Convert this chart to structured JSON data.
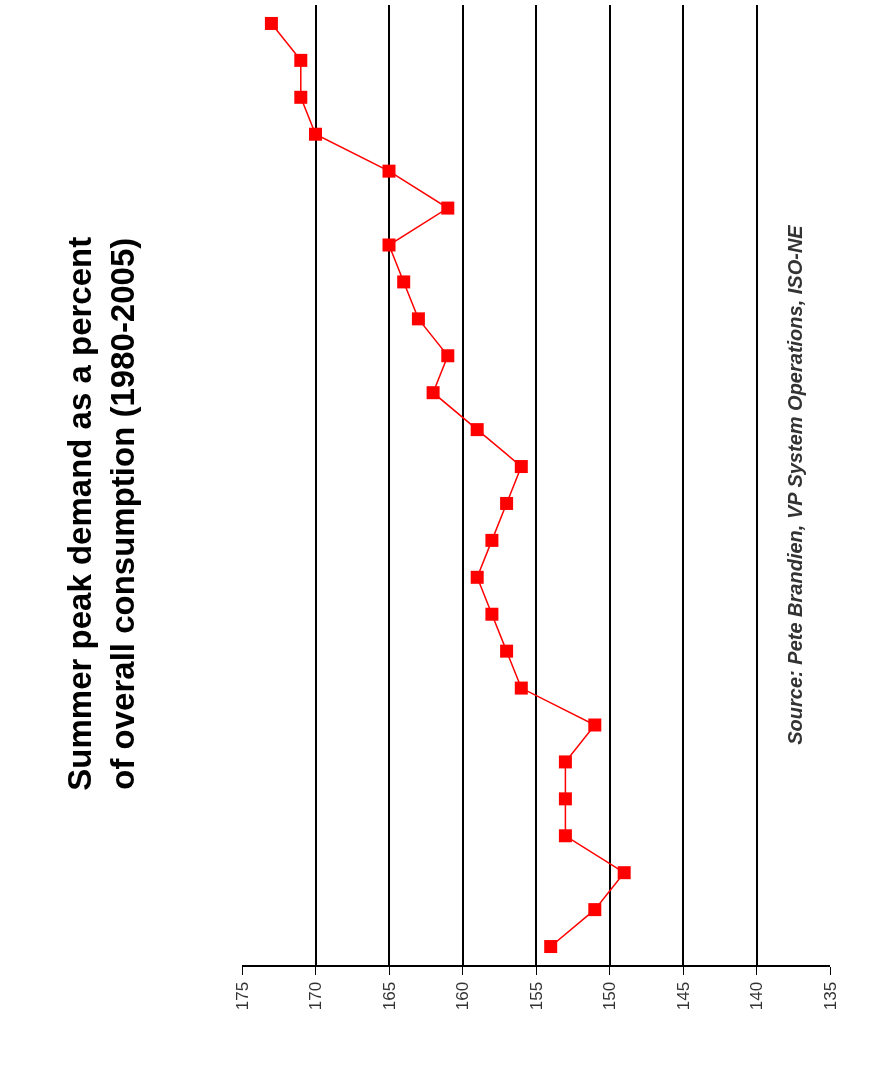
{
  "chart_data": {
    "type": "line",
    "orientation": "horizontal",
    "title": "Summer peak demand as a percent\nof overall consumption (1980-2005)",
    "annotations": [
      "Source: Pete Brandien, VP System Operations, ISO-NE"
    ],
    "categories": [
      null,
      null,
      null,
      null,
      null,
      null,
      null,
      null,
      null,
      null,
      null,
      null,
      null,
      null,
      null,
      null,
      null,
      null,
      null,
      null,
      null,
      null,
      null,
      null,
      null,
      null
    ],
    "series": [
      {
        "color": "#ff0000",
        "values": [
          173,
          171,
          171,
          170,
          165,
          161,
          165,
          164,
          163,
          161,
          162,
          159,
          156,
          157,
          158,
          159,
          158,
          157,
          156,
          151,
          153,
          153,
          153,
          149,
          151,
          154
        ]
      }
    ],
    "xlim": [
      175,
      135
    ],
    "xticks": [
      175,
      170,
      165,
      160,
      155,
      150,
      145,
      140,
      135
    ],
    "grid": "x",
    "marker": "square",
    "line_style": "solid",
    "tick_labels": "x"
  }
}
